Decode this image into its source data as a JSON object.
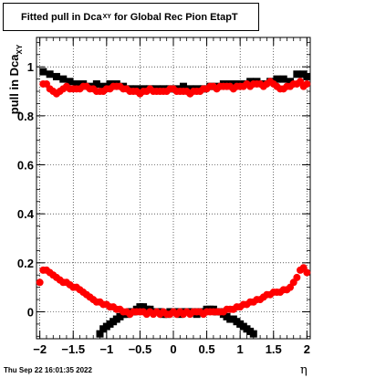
{
  "title": {
    "main": "Fitted pull in Dca",
    "sub": "XY",
    "rest": "for Global Rec Pion EtapT"
  },
  "timestamp": "Thu Sep 22 16:01:35 2022",
  "chart_data": {
    "type": "scatter",
    "title": "Fitted pull in Dca_XY for Global Rec Pion EtapT",
    "xlabel": "η",
    "ylabel": "pull in Dca_XY",
    "xlim": [
      -2.05,
      2.05
    ],
    "ylim": [
      -0.11,
      1.12
    ],
    "xticks": [
      -2,
      -1.5,
      -1,
      -0.5,
      0,
      0.5,
      1,
      1.5,
      2
    ],
    "xtick_labels": [
      "−2",
      "−1.5",
      "−1",
      "−0.5",
      "0",
      "0.5",
      "1",
      "1.5",
      "2"
    ],
    "yticks": [
      0,
      0.2,
      0.4,
      0.6,
      0.8,
      1
    ],
    "ytick_labels": [
      "0",
      "0.2",
      "0.4",
      "0.6",
      "0.8",
      "1"
    ],
    "grid": true,
    "series": [
      {
        "color": "#000000",
        "marker": "square",
        "x": [
          -1.95,
          -1.85,
          -1.75,
          -1.65,
          -1.55,
          -1.45,
          -1.35,
          -1.25,
          -1.15,
          -1.05,
          -0.95,
          -0.85,
          -0.75,
          -0.65,
          -0.55,
          -0.45,
          -0.35,
          -0.25,
          -0.15,
          -0.05,
          0.05,
          0.15,
          0.25,
          0.35,
          0.45,
          0.55,
          0.65,
          0.75,
          0.85,
          0.95,
          1.05,
          1.15,
          1.25,
          1.35,
          1.45,
          1.55,
          1.65,
          1.75,
          1.85,
          1.95,
          2.0
        ],
        "y": [
          0.98,
          0.97,
          0.96,
          0.95,
          0.94,
          0.93,
          0.93,
          0.92,
          0.93,
          0.92,
          0.93,
          0.93,
          0.92,
          0.91,
          0.91,
          0.91,
          0.91,
          0.91,
          0.91,
          0.91,
          0.91,
          0.92,
          0.91,
          0.91,
          0.91,
          0.92,
          0.92,
          0.93,
          0.93,
          0.93,
          0.93,
          0.94,
          0.94,
          0.93,
          0.94,
          0.95,
          0.95,
          0.94,
          0.97,
          0.97,
          0.96
        ]
      },
      {
        "color": "#000000",
        "marker": "square",
        "x": [
          -1.1,
          -1.05,
          -1.0,
          -0.95,
          -0.9,
          -0.85,
          -0.8,
          -0.75,
          -0.7,
          -0.65,
          -0.6,
          -0.55,
          -0.5,
          -0.45,
          -0.4,
          -0.35,
          -0.3,
          -0.25,
          -0.2,
          -0.15,
          -0.1,
          -0.05,
          0.0,
          0.05,
          0.1,
          0.15,
          0.2,
          0.25,
          0.3,
          0.35,
          0.4,
          0.45,
          0.5,
          0.55,
          0.6,
          0.65,
          0.7,
          0.75,
          0.8,
          0.85,
          0.9,
          0.95,
          1.0,
          1.05,
          1.1,
          1.15,
          1.2
        ],
        "y": [
          -0.09,
          -0.07,
          -0.06,
          -0.05,
          -0.04,
          -0.03,
          -0.02,
          -0.01,
          -0.01,
          0.0,
          0.0,
          0.01,
          0.02,
          0.02,
          0.01,
          0.01,
          0.0,
          0.0,
          0.0,
          -0.01,
          -0.01,
          0.0,
          0.0,
          0.0,
          -0.01,
          0.0,
          0.0,
          0.0,
          0.0,
          -0.01,
          0.0,
          0.0,
          0.01,
          0.01,
          0.01,
          0.0,
          0.0,
          -0.01,
          -0.02,
          -0.03,
          -0.03,
          -0.04,
          -0.05,
          -0.06,
          -0.07,
          -0.08,
          -0.09
        ]
      },
      {
        "color": "#ff0000",
        "marker": "circle",
        "x": [
          -1.95,
          -1.9,
          -1.85,
          -1.8,
          -1.75,
          -1.7,
          -1.65,
          -1.6,
          -1.55,
          -1.5,
          -1.45,
          -1.4,
          -1.35,
          -1.3,
          -1.25,
          -1.2,
          -1.15,
          -1.1,
          -1.05,
          -1.0,
          -0.95,
          -0.9,
          -0.85,
          -0.8,
          -0.75,
          -0.7,
          -0.65,
          -0.6,
          -0.55,
          -0.5,
          -0.45,
          -0.4,
          -0.35,
          -0.3,
          -0.25,
          -0.2,
          -0.15,
          -0.1,
          -0.05,
          0.0,
          0.05,
          0.1,
          0.15,
          0.2,
          0.25,
          0.3,
          0.35,
          0.4,
          0.45,
          0.5,
          0.55,
          0.6,
          0.65,
          0.7,
          0.75,
          0.8,
          0.85,
          0.9,
          0.95,
          1.0,
          1.05,
          1.1,
          1.15,
          1.2,
          1.25,
          1.3,
          1.35,
          1.4,
          1.45,
          1.5,
          1.55,
          1.6,
          1.65,
          1.7,
          1.75,
          1.8,
          1.85,
          1.9,
          1.95,
          2.0
        ],
        "y": [
          0.93,
          0.93,
          0.91,
          0.9,
          0.89,
          0.9,
          0.91,
          0.92,
          0.91,
          0.91,
          0.91,
          0.91,
          0.92,
          0.92,
          0.91,
          0.91,
          0.9,
          0.9,
          0.9,
          0.91,
          0.91,
          0.92,
          0.92,
          0.92,
          0.91,
          0.91,
          0.9,
          0.9,
          0.9,
          0.89,
          0.9,
          0.9,
          0.91,
          0.9,
          0.9,
          0.9,
          0.9,
          0.9,
          0.91,
          0.91,
          0.9,
          0.9,
          0.9,
          0.9,
          0.89,
          0.9,
          0.9,
          0.9,
          0.91,
          0.91,
          0.92,
          0.92,
          0.91,
          0.92,
          0.92,
          0.92,
          0.92,
          0.91,
          0.92,
          0.92,
          0.92,
          0.93,
          0.92,
          0.93,
          0.93,
          0.93,
          0.92,
          0.93,
          0.94,
          0.93,
          0.92,
          0.91,
          0.91,
          0.92,
          0.92,
          0.93,
          0.93,
          0.94,
          0.92,
          0.93
        ]
      },
      {
        "color": "#ff0000",
        "marker": "circle",
        "x": [
          -2.0,
          -1.95,
          -1.9,
          -1.85,
          -1.8,
          -1.75,
          -1.7,
          -1.65,
          -1.6,
          -1.55,
          -1.5,
          -1.45,
          -1.4,
          -1.35,
          -1.3,
          -1.25,
          -1.2,
          -1.15,
          -1.1,
          -1.05,
          -1.0,
          -0.95,
          -0.9,
          -0.85,
          -0.8,
          -0.75,
          -0.7,
          -0.65,
          -0.6,
          -0.55,
          -0.5,
          -0.45,
          -0.4,
          -0.35,
          -0.3,
          -0.25,
          -0.2,
          -0.15,
          -0.1,
          -0.05,
          0.0,
          0.05,
          0.1,
          0.15,
          0.2,
          0.25,
          0.3,
          0.35,
          0.4,
          0.45,
          0.5,
          0.55,
          0.6,
          0.65,
          0.7,
          0.75,
          0.8,
          0.85,
          0.9,
          0.95,
          1.0,
          1.05,
          1.1,
          1.15,
          1.2,
          1.25,
          1.3,
          1.35,
          1.4,
          1.45,
          1.5,
          1.55,
          1.6,
          1.65,
          1.7,
          1.75,
          1.8,
          1.85,
          1.9,
          1.95,
          2.0
        ],
        "y": [
          0.12,
          0.17,
          0.17,
          0.16,
          0.15,
          0.14,
          0.13,
          0.12,
          0.12,
          0.11,
          0.1,
          0.1,
          0.09,
          0.08,
          0.07,
          0.06,
          0.05,
          0.04,
          0.04,
          0.03,
          0.03,
          0.02,
          0.02,
          0.01,
          0.01,
          0.0,
          0.0,
          -0.01,
          0.0,
          0.0,
          0.0,
          0.0,
          -0.01,
          0.0,
          -0.01,
          0.0,
          -0.01,
          0.0,
          -0.01,
          -0.01,
          0.0,
          -0.01,
          0.0,
          -0.01,
          0.0,
          -0.01,
          0.0,
          0.0,
          0.0,
          -0.01,
          0.0,
          0.0,
          0.0,
          0.0,
          0.0,
          0.0,
          0.01,
          0.01,
          0.01,
          0.02,
          0.02,
          0.03,
          0.03,
          0.04,
          0.04,
          0.05,
          0.05,
          0.06,
          0.07,
          0.07,
          0.08,
          0.08,
          0.08,
          0.09,
          0.09,
          0.1,
          0.12,
          0.14,
          0.17,
          0.18,
          0.16
        ]
      }
    ]
  }
}
